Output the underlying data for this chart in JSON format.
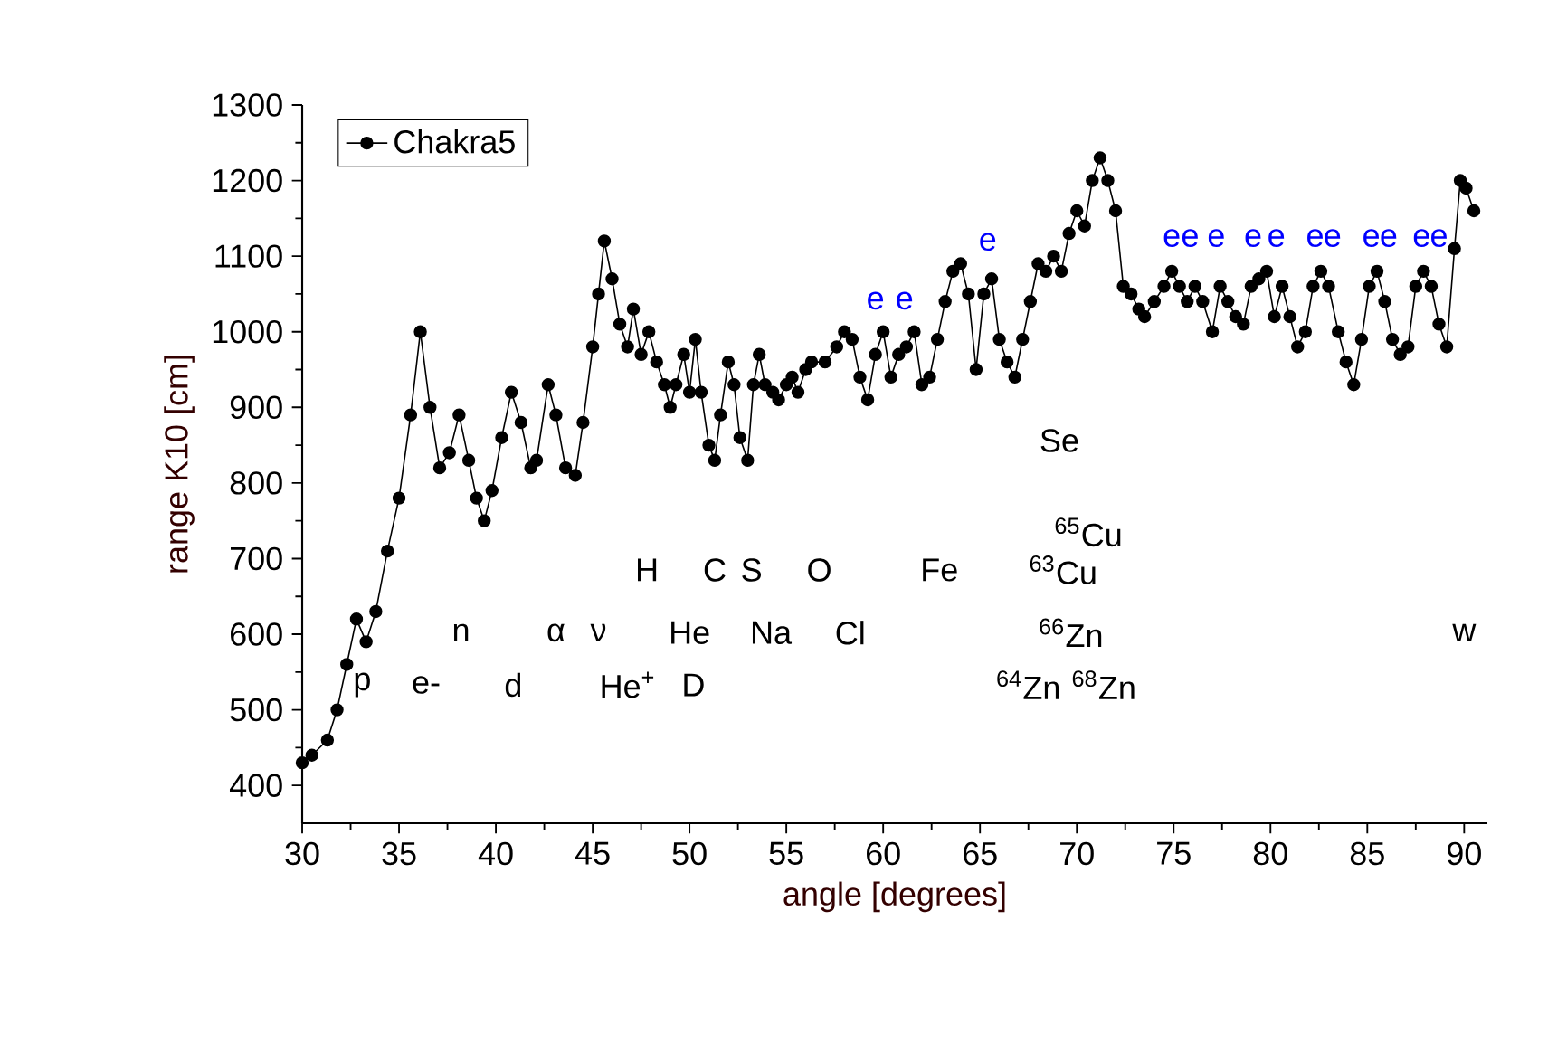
{
  "chart_data": {
    "type": "line",
    "xlabel": "angle [degrees]",
    "ylabel": "range K10 [cm]",
    "xlim": [
      30,
      91.2
    ],
    "ylim": [
      350,
      1300
    ],
    "xticks": [
      30,
      35,
      40,
      45,
      50,
      55,
      60,
      65,
      70,
      75,
      80,
      85,
      90
    ],
    "yticks": [
      400,
      500,
      600,
      700,
      800,
      900,
      1000,
      1100,
      1200,
      1300
    ],
    "legend": "top left",
    "marker": "circle",
    "line_style": "solid",
    "grid": false,
    "series": [
      {
        "name": "Chakra5",
        "color": "#000000",
        "x": [
          30.0,
          30.5,
          31.3,
          31.8,
          32.3,
          32.8,
          33.3,
          33.8,
          34.4,
          35.0,
          35.6,
          36.1,
          36.6,
          37.1,
          37.6,
          38.1,
          38.6,
          39.0,
          39.4,
          39.8,
          40.3,
          40.8,
          41.3,
          41.8,
          42.1,
          42.7,
          43.1,
          43.6,
          44.1,
          44.5,
          45.0,
          45.3,
          45.6,
          46.0,
          46.4,
          46.8,
          47.1,
          47.5,
          47.9,
          48.3,
          48.7,
          49.0,
          49.3,
          49.7,
          50.0,
          50.3,
          50.6,
          51.0,
          51.3,
          51.6,
          52.0,
          52.3,
          52.6,
          53.0,
          53.3,
          53.6,
          53.9,
          54.3,
          54.6,
          55.0,
          55.3,
          55.6,
          56.0,
          56.3,
          57.0,
          57.6,
          58.0,
          58.4,
          58.8,
          59.2,
          59.6,
          60.0,
          60.4,
          60.8,
          61.2,
          61.6,
          62.0,
          62.4,
          62.8,
          63.2,
          63.6,
          64.0,
          64.4,
          64.8,
          65.2,
          65.6,
          66.0,
          66.4,
          66.8,
          67.2,
          67.6,
          68.0,
          68.4,
          68.8,
          69.2,
          69.6,
          70.0,
          70.4,
          70.8,
          71.2,
          71.6,
          72.0,
          72.4,
          72.8,
          73.2,
          73.5,
          74.0,
          74.5,
          74.9,
          75.3,
          75.7,
          76.1,
          76.5,
          77.0,
          77.4,
          77.8,
          78.2,
          78.6,
          79.0,
          79.4,
          79.8,
          80.2,
          80.6,
          81.0,
          81.4,
          81.8,
          82.2,
          82.6,
          83.0,
          83.5,
          83.9,
          84.3,
          84.7,
          85.1,
          85.5,
          85.9,
          86.3,
          86.7,
          87.1,
          87.5,
          87.9,
          88.3,
          88.7,
          89.1,
          89.5,
          89.8,
          90.1,
          90.5
        ],
        "values": [
          430,
          440,
          460,
          500,
          560,
          620,
          590,
          630,
          710,
          780,
          890,
          1000,
          900,
          820,
          840,
          890,
          830,
          780,
          750,
          790,
          860,
          920,
          880,
          820,
          830,
          930,
          890,
          820,
          810,
          880,
          980,
          1050,
          1120,
          1070,
          1010,
          980,
          1030,
          970,
          1000,
          960,
          930,
          900,
          930,
          970,
          920,
          990,
          920,
          850,
          830,
          890,
          960,
          930,
          860,
          830,
          930,
          970,
          930,
          920,
          910,
          930,
          940,
          920,
          950,
          960,
          960,
          980,
          1000,
          990,
          940,
          910,
          970,
          1000,
          940,
          970,
          980,
          1000,
          930,
          940,
          990,
          1040,
          1080,
          1090,
          1050,
          950,
          1050,
          1070,
          990,
          960,
          940,
          990,
          1040,
          1090,
          1080,
          1100,
          1080,
          1130,
          1160,
          1140,
          1200,
          1230,
          1200,
          1160,
          1060,
          1050,
          1030,
          1020,
          1040,
          1060,
          1080,
          1060,
          1040,
          1060,
          1040,
          1000,
          1060,
          1040,
          1020,
          1010,
          1060,
          1070,
          1080,
          1020,
          1060,
          1020,
          980,
          1000,
          1060,
          1080,
          1060,
          1000,
          960,
          930,
          990,
          1060,
          1080,
          1040,
          990,
          970,
          980,
          1060,
          1080,
          1060,
          1010,
          980,
          1110,
          1200,
          1190,
          1160
        ]
      }
    ],
    "annotations": [
      "p",
      "e-",
      "n",
      "d",
      "α",
      "ν",
      "He$^{+}$",
      "D",
      "H",
      "He",
      "C",
      "S",
      "Na",
      "O",
      "Cl",
      "Fe",
      "Se",
      "$^{65}$Cu",
      "$^{63}$Cu",
      "$^{66}$Zn",
      "$^{64}$Zn",
      "$^{68}$Zn",
      "w",
      "e",
      "e",
      "e",
      "e",
      "e",
      "e",
      "e",
      "e",
      "e",
      "e",
      "e",
      "e",
      "e",
      "e"
    ]
  }
}
